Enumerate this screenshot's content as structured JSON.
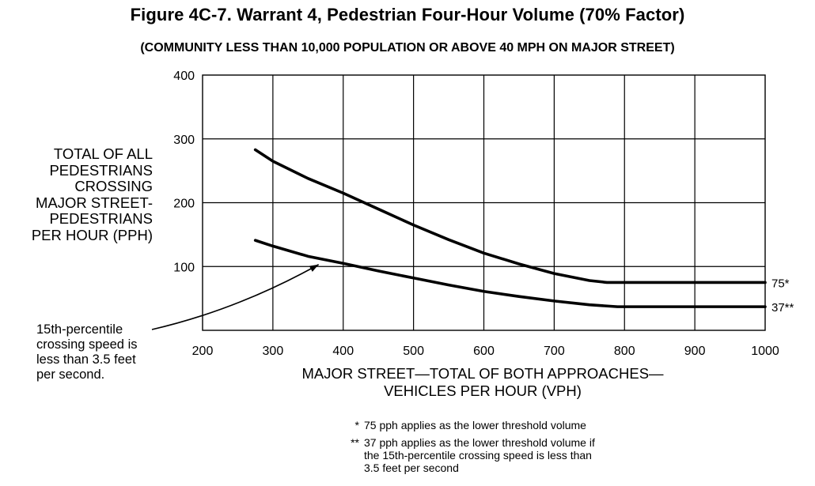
{
  "chart_data": {
    "type": "line",
    "title": "Figure 4C-7.  Warrant 4, Pedestrian Four-Hour Volume (70% Factor)",
    "subtitle": "(COMMUNITY LESS THAN 10,000 POPULATION OR ABOVE 40 MPH ON MAJOR STREET)",
    "xlabel_lines": [
      "MAJOR STREET—TOTAL OF BOTH APPROACHES—",
      "VEHICLES PER HOUR (VPH)"
    ],
    "ylabel_lines": [
      "TOTAL OF ALL",
      "PEDESTRIANS",
      "CROSSING",
      "MAJOR STREET-",
      "PEDESTRIANS",
      "PER HOUR (PPH)"
    ],
    "xlim": [
      200,
      1000
    ],
    "ylim": [
      0,
      400
    ],
    "x_ticks": [
      200,
      300,
      400,
      500,
      600,
      700,
      800,
      900,
      1000
    ],
    "y_ticks": [
      100,
      200,
      300,
      400
    ],
    "grid": true,
    "series": [
      {
        "end_label": "75*",
        "x": [
          275,
          300,
          350,
          400,
          450,
          500,
          550,
          600,
          650,
          700,
          750,
          775,
          800,
          900,
          1000
        ],
        "values": [
          283,
          265,
          238,
          215,
          190,
          165,
          142,
          121,
          104,
          89,
          78,
          75,
          75,
          75,
          75
        ]
      },
      {
        "end_label": "37**",
        "x": [
          275,
          300,
          350,
          400,
          450,
          500,
          550,
          600,
          650,
          700,
          750,
          790,
          800,
          900,
          1000
        ],
        "values": [
          141,
          132,
          116,
          105,
          93,
          82,
          71,
          61,
          53,
          46,
          40,
          37,
          37,
          37,
          37
        ]
      }
    ],
    "annotation": {
      "lines": [
        "15th-percentile",
        "crossing speed is",
        "less than 3.5 feet",
        "per second."
      ],
      "points_to": {
        "x": 365,
        "y": 113
      }
    },
    "footnotes": [
      {
        "mark": "*",
        "lines": [
          "75 pph applies as the lower threshold volume"
        ]
      },
      {
        "mark": "**",
        "lines": [
          "37 pph applies as the lower threshold volume if",
          "the 15th-percentile crossing speed is less than",
          "3.5 feet per second"
        ]
      }
    ]
  }
}
